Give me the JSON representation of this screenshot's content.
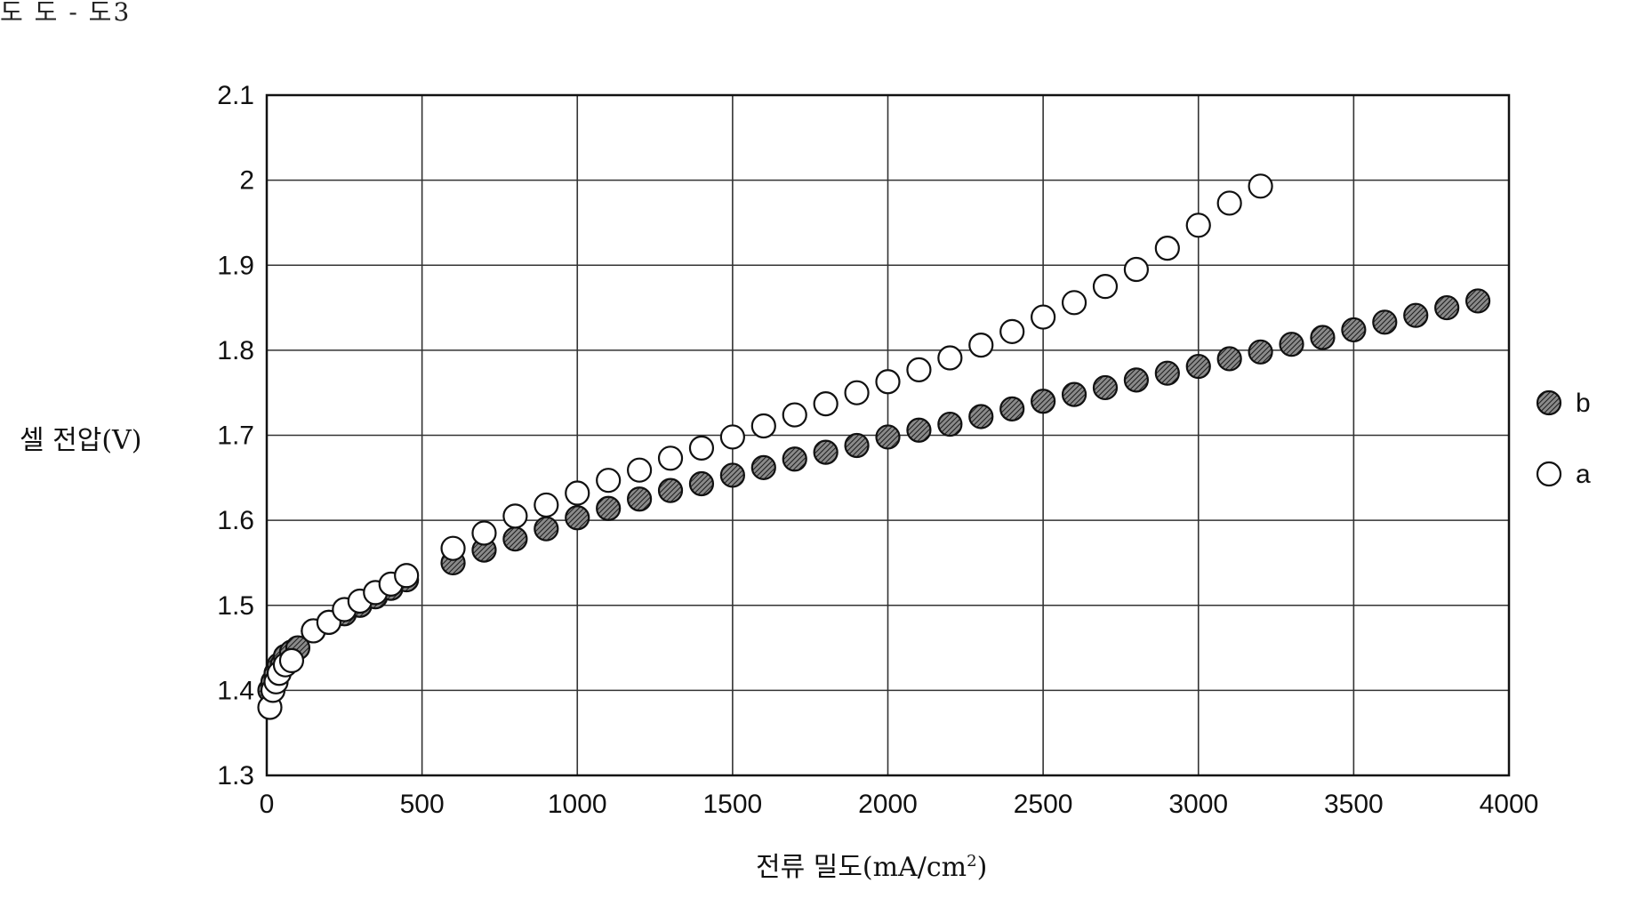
{
  "header": {
    "figure_label": "도 도 - 도3"
  },
  "chart_data": {
    "type": "scatter",
    "title": "",
    "xlabel": "전류 밀도(mA/cm",
    "xlabel_sup": "2",
    "xlabel_end": ")",
    "ylabel": "셀 전압(V)",
    "xlim": [
      0,
      4000
    ],
    "ylim": [
      1.3,
      2.1
    ],
    "x_ticks": [
      0,
      500,
      1000,
      1500,
      2000,
      2500,
      3000,
      3500,
      4000
    ],
    "y_ticks": [
      1.3,
      1.4,
      1.5,
      1.6,
      1.7,
      1.8,
      1.9,
      2.0,
      2.1
    ],
    "x_tick_labels": [
      "0",
      "500",
      "1000",
      "1500",
      "2000",
      "2500",
      "3000",
      "3500",
      "4000"
    ],
    "y_tick_labels": [
      "1.3",
      "1.4",
      "1.5",
      "1.6",
      "1.7",
      "1.8",
      "1.9",
      "2",
      "2.1"
    ],
    "grid": true,
    "legend_position": "right",
    "series": [
      {
        "name": "b",
        "marker": "hatched-filled-circle",
        "color": "#555555",
        "points": [
          [
            10,
            1.4
          ],
          [
            20,
            1.41
          ],
          [
            30,
            1.42
          ],
          [
            40,
            1.43
          ],
          [
            50,
            1.43
          ],
          [
            60,
            1.44
          ],
          [
            80,
            1.445
          ],
          [
            100,
            1.45
          ],
          [
            150,
            1.47
          ],
          [
            200,
            1.48
          ],
          [
            250,
            1.49
          ],
          [
            300,
            1.5
          ],
          [
            350,
            1.51
          ],
          [
            400,
            1.52
          ],
          [
            450,
            1.53
          ],
          [
            600,
            1.55
          ],
          [
            700,
            1.565
          ],
          [
            800,
            1.578
          ],
          [
            900,
            1.59
          ],
          [
            1000,
            1.603
          ],
          [
            1100,
            1.614
          ],
          [
            1200,
            1.625
          ],
          [
            1300,
            1.635
          ],
          [
            1400,
            1.643
          ],
          [
            1500,
            1.653
          ],
          [
            1600,
            1.662
          ],
          [
            1700,
            1.672
          ],
          [
            1800,
            1.68
          ],
          [
            1900,
            1.688
          ],
          [
            2000,
            1.698
          ],
          [
            2100,
            1.706
          ],
          [
            2200,
            1.713
          ],
          [
            2300,
            1.722
          ],
          [
            2400,
            1.731
          ],
          [
            2500,
            1.74
          ],
          [
            2600,
            1.748
          ],
          [
            2700,
            1.756
          ],
          [
            2800,
            1.765
          ],
          [
            2900,
            1.773
          ],
          [
            3000,
            1.781
          ],
          [
            3100,
            1.79
          ],
          [
            3200,
            1.798
          ],
          [
            3300,
            1.807
          ],
          [
            3400,
            1.815
          ],
          [
            3500,
            1.824
          ],
          [
            3600,
            1.833
          ],
          [
            3700,
            1.841
          ],
          [
            3800,
            1.85
          ],
          [
            3900,
            1.858
          ]
        ]
      },
      {
        "name": "a",
        "marker": "open-circle",
        "color": "#ffffff",
        "points": [
          [
            10,
            1.38
          ],
          [
            20,
            1.4
          ],
          [
            30,
            1.41
          ],
          [
            40,
            1.42
          ],
          [
            60,
            1.43
          ],
          [
            80,
            1.435
          ],
          [
            150,
            1.47
          ],
          [
            200,
            1.48
          ],
          [
            250,
            1.495
          ],
          [
            300,
            1.505
          ],
          [
            350,
            1.515
          ],
          [
            400,
            1.525
          ],
          [
            450,
            1.535
          ],
          [
            600,
            1.567
          ],
          [
            700,
            1.585
          ],
          [
            800,
            1.605
          ],
          [
            900,
            1.618
          ],
          [
            1000,
            1.632
          ],
          [
            1100,
            1.647
          ],
          [
            1200,
            1.659
          ],
          [
            1300,
            1.673
          ],
          [
            1400,
            1.685
          ],
          [
            1500,
            1.698
          ],
          [
            1600,
            1.711
          ],
          [
            1700,
            1.724
          ],
          [
            1800,
            1.737
          ],
          [
            1900,
            1.75
          ],
          [
            2000,
            1.763
          ],
          [
            2100,
            1.777
          ],
          [
            2200,
            1.791
          ],
          [
            2300,
            1.806
          ],
          [
            2400,
            1.822
          ],
          [
            2500,
            1.839
          ],
          [
            2600,
            1.856
          ],
          [
            2700,
            1.875
          ],
          [
            2800,
            1.895
          ],
          [
            2900,
            1.92
          ],
          [
            3000,
            1.947
          ],
          [
            3100,
            1.973
          ],
          [
            3200,
            1.993
          ]
        ]
      }
    ]
  }
}
